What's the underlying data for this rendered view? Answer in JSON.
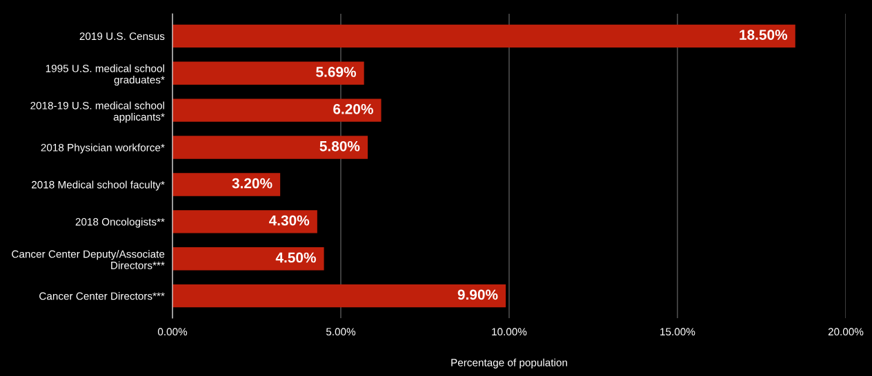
{
  "chart_data": {
    "type": "bar",
    "orientation": "horizontal",
    "xlabel": "Percentage of population",
    "categories": [
      "2019 U.S. Census",
      "1995 U.S. medical school\ngraduates*",
      "2018-19 U.S. medical school\napplicants*",
      "2018 Physician workforce*",
      "2018 Medical school faculty*",
      "2018 Oncologists**",
      "Cancer Center Deputy/Associate\nDirectors***",
      "Cancer Center Directors***"
    ],
    "values": [
      18.5,
      5.69,
      6.2,
      5.8,
      3.2,
      4.3,
      4.5,
      9.9
    ],
    "value_labels": [
      "18.50%",
      "5.69%",
      "6.20%",
      "5.80%",
      "3.20%",
      "4.30%",
      "4.50%",
      "9.90%"
    ],
    "color": "#c0200c",
    "xlim": [
      0,
      20
    ],
    "xticks": [
      {
        "value": 0,
        "label": "0.00%"
      },
      {
        "value": 5,
        "label": "5.00%"
      },
      {
        "value": 10,
        "label": "10.00%"
      },
      {
        "value": 15,
        "label": "15.00%"
      },
      {
        "value": 20,
        "label": "20.00%"
      }
    ],
    "grid": "x",
    "legend": false
  }
}
